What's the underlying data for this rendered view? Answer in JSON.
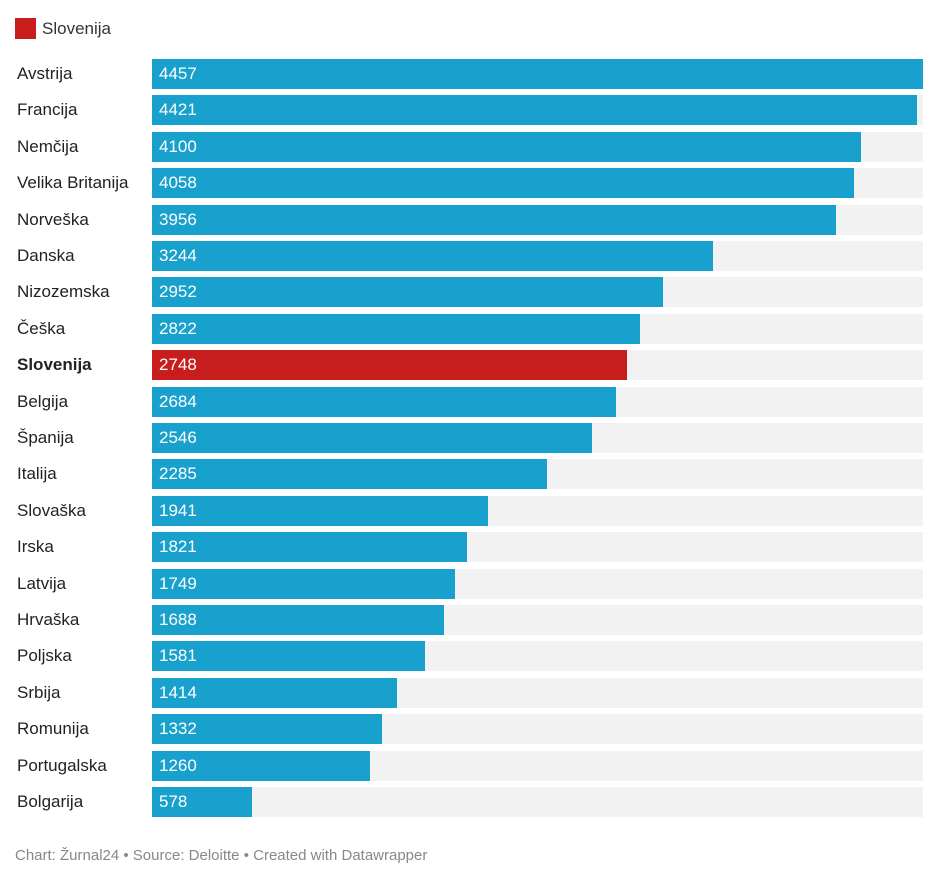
{
  "chart_data": {
    "type": "bar",
    "orientation": "horizontal",
    "legend": {
      "label": "Slovenija",
      "color": "#c71e1d",
      "placement": "top-left"
    },
    "categories": [
      "Avstrija",
      "Francija",
      "Nemčija",
      "Velika Britanija",
      "Norveška",
      "Danska",
      "Nizozemska",
      "Češka",
      "Slovenija",
      "Belgija",
      "Španija",
      "Italija",
      "Slovaška",
      "Irska",
      "Latvija",
      "Hrvaška",
      "Poljska",
      "Srbija",
      "Romunija",
      "Portugalska",
      "Bolgarija"
    ],
    "values": [
      4457,
      4421,
      4100,
      4058,
      3956,
      3244,
      2952,
      2822,
      2748,
      2684,
      2546,
      2285,
      1941,
      1821,
      1749,
      1688,
      1581,
      1414,
      1332,
      1260,
      578
    ],
    "highlight": "Slovenija",
    "xlim": [
      0,
      4457
    ],
    "colors": {
      "default": "#18a1cd",
      "highlight": "#c71e1d",
      "track": "#f2f2f2"
    }
  },
  "footer": "Chart: Žurnal24 • Source: Deloitte • Created with Datawrapper"
}
